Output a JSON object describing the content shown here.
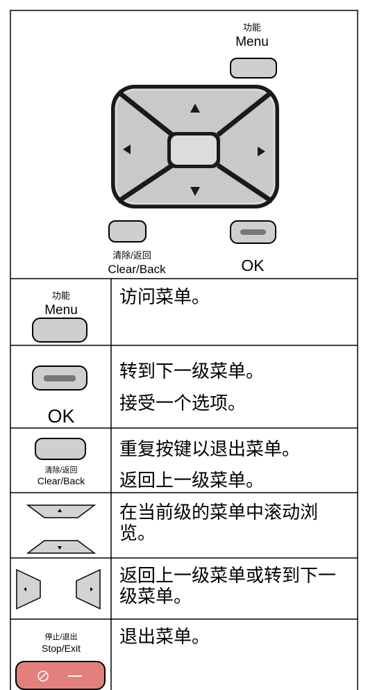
{
  "panel": {
    "menu_label_cn": "功能",
    "menu_label": "Menu",
    "clear_label_cn": "清除/返回",
    "clear_label": "Clear/Back",
    "ok_label": "OK"
  },
  "rows": [
    {
      "key": {
        "label_cn": "功能",
        "label": "Menu"
      },
      "descriptions": [
        "访问菜单。"
      ]
    },
    {
      "key": {
        "label": "OK"
      },
      "descriptions": [
        "转到下一级菜单。",
        "接受一个选项。"
      ]
    },
    {
      "key": {
        "label_cn": "清除/返回",
        "label": "Clear/Back"
      },
      "descriptions": [
        "重复按键以退出菜单。",
        "返回上一级菜单。"
      ]
    },
    {
      "descriptions": [
        "在当前级的菜单中滚动浏览。"
      ]
    },
    {
      "descriptions": [
        "返回上一级菜单或转到下一级菜单。"
      ]
    },
    {
      "key": {
        "label_cn": "停止/退出",
        "label": "Stop/Exit"
      },
      "descriptions": [
        "退出菜单。"
      ]
    }
  ]
}
